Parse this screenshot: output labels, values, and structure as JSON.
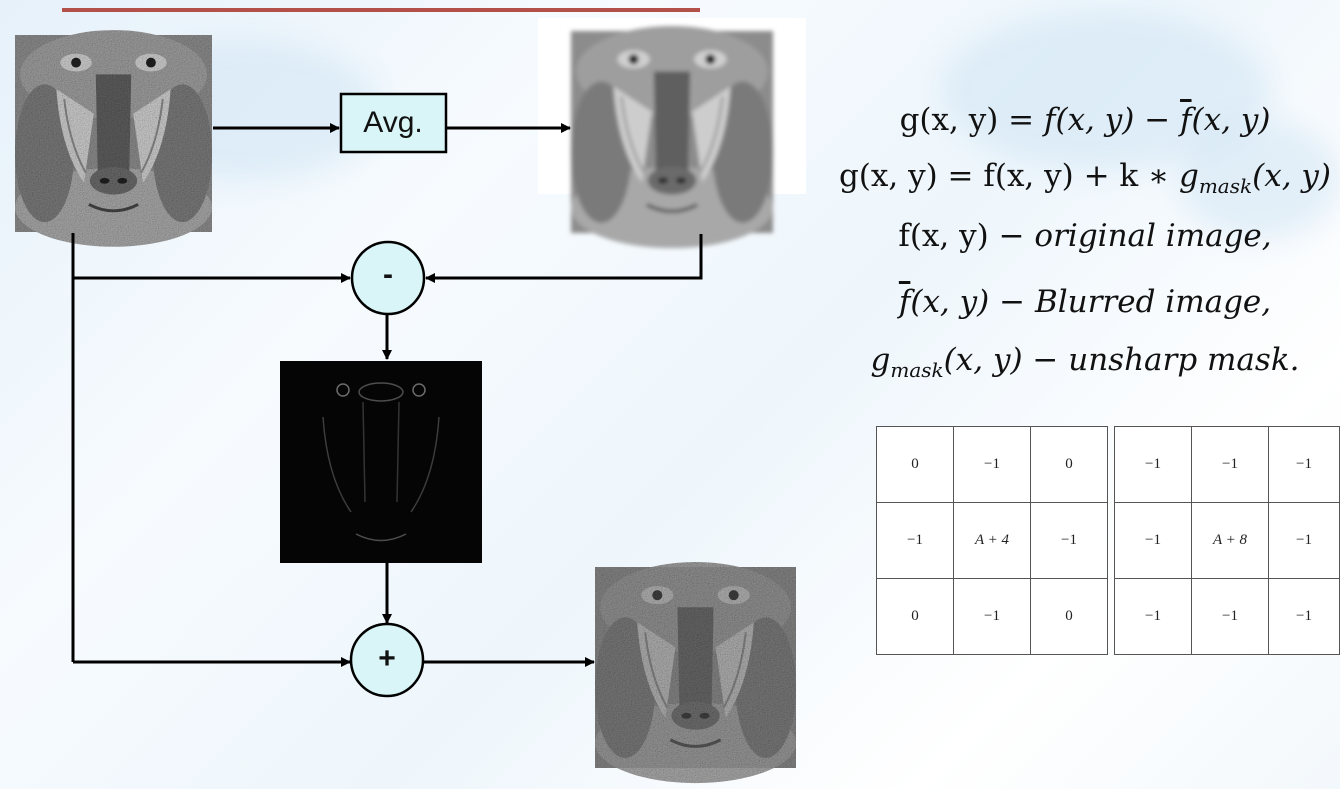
{
  "diagram": {
    "avg_label": "Avg.",
    "subtract_label": "-",
    "add_label": "+",
    "images": {
      "original": "original-image",
      "blurred": "blurred-image",
      "mask": "unsharp-mask-image",
      "sharpened": "sharpened-image"
    }
  },
  "equations": {
    "line1": {
      "lhs": "g(x,  y) = ",
      "f": "f",
      "args": "(x, y) − ",
      "fbar": "f",
      "args2": "(x, y)"
    },
    "line2": {
      "lhs": "g(x, y) = f(x, y) + k ∗ ",
      "g": "g",
      "sub": "mask",
      "args": "(x, y)"
    },
    "line3": {
      "lhs": "f(x, y) − ",
      "desc": "original image,"
    },
    "line4": {
      "fbar": "f",
      "args": "(x, y) − ",
      "desc": "Blurred image,"
    },
    "line5": {
      "g": "g",
      "sub": "mask",
      "args": "(x, y) − ",
      "desc": "unsharp mask."
    }
  },
  "kernels": [
    {
      "rows": [
        [
          "0",
          "−1",
          "0"
        ],
        [
          "−1",
          "A + 4",
          "−1"
        ],
        [
          "0",
          "−1",
          "0"
        ]
      ]
    },
    {
      "rows": [
        [
          "−1",
          "−1",
          "−1"
        ],
        [
          "−1",
          "A + 8",
          "−1"
        ],
        [
          "−1",
          "−1",
          "−1"
        ]
      ]
    }
  ],
  "colors": {
    "accent_line": "#b4504a",
    "node_fill": "#d9f5f7",
    "arrow": "#000000"
  }
}
